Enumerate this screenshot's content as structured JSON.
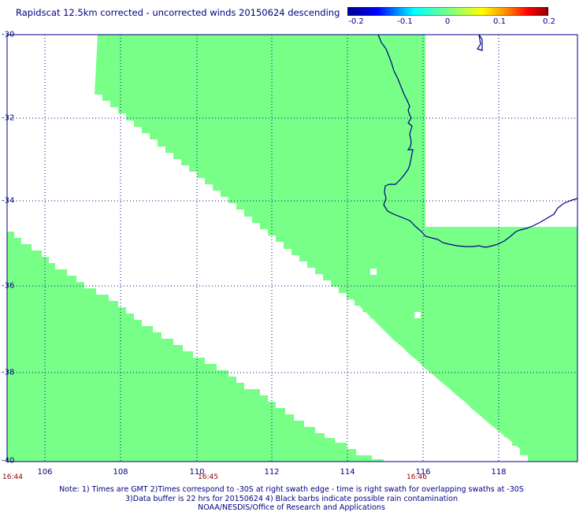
{
  "title": "Rapidscat 12.5km corrected - uncorrected winds 20150624 descending",
  "colorbar": {
    "ticks": [
      "-0.2",
      "-0.1",
      "0",
      "0.1",
      "0.2"
    ],
    "gradient_colors": [
      "#00008b",
      "#0000ff",
      "#00ffff",
      "#77ff88",
      "#ffff00",
      "#ff8000",
      "#ff0000",
      "#8b0000"
    ]
  },
  "map": {
    "lat_labels": [
      "-30",
      "-32",
      "-34",
      "-36",
      "-38",
      "-40"
    ],
    "lon_labels": [
      "106",
      "108",
      "110",
      "112",
      "114",
      "116",
      "118"
    ],
    "time_labels": [
      "16:44",
      "16:45",
      "16:46"
    ],
    "swath_color": "#77ff88",
    "coast_color": "#000080",
    "grid_color": "#000080"
  },
  "notes": [
    "Note: 1) Times are GMT 2)Times correspond to -30S at right swath edge - time is right swath for overlapping swaths at -30S",
    "3)Data buffer is 22 hrs for 20150624 4) Black barbs indicate possible rain contamination",
    "NOAA/NESDIS/Office of Research and Applications"
  ]
}
